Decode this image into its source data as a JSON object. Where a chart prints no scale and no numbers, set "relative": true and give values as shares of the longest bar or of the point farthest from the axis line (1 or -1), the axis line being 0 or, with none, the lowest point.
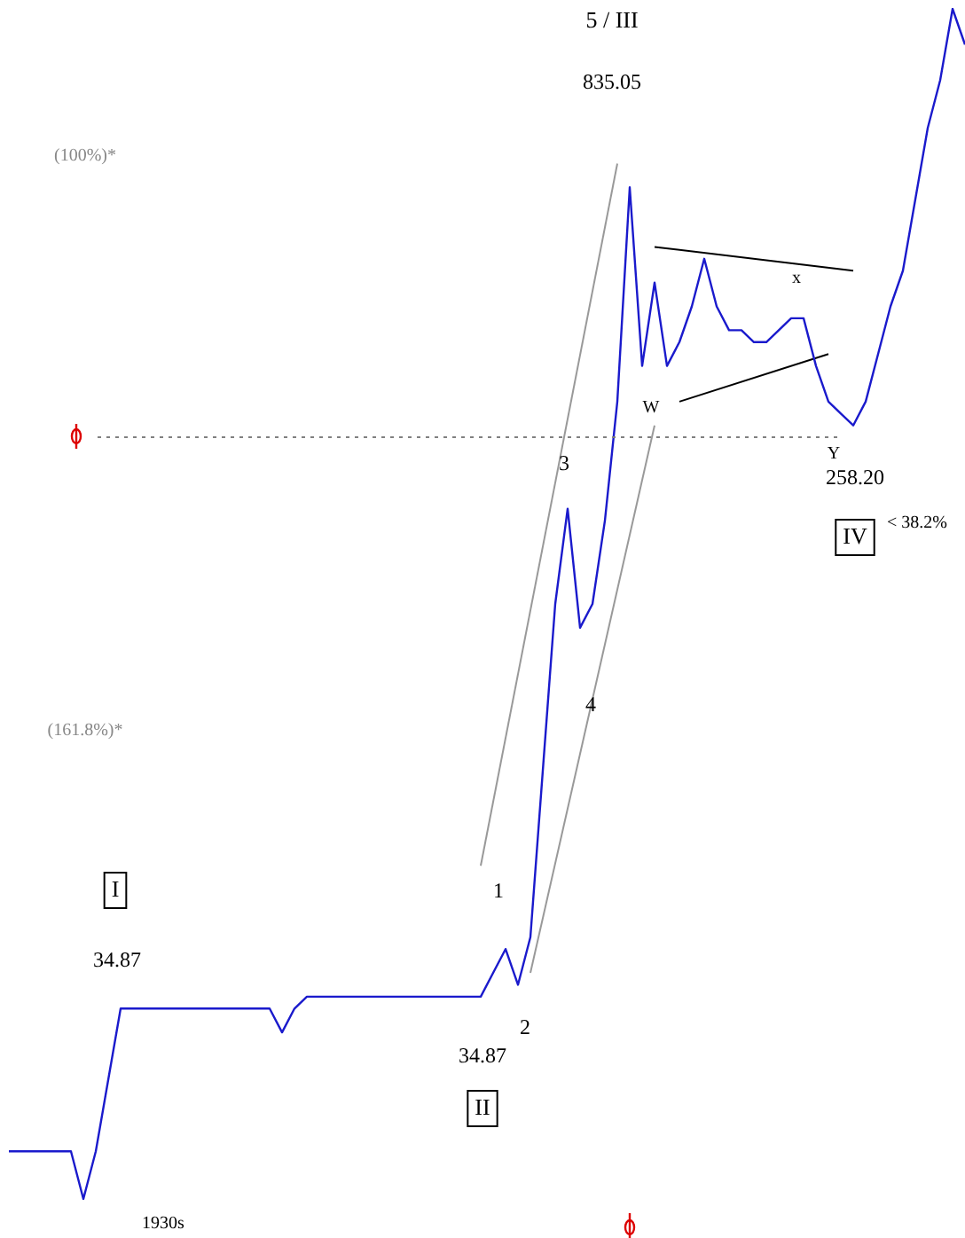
{
  "chart_data": {
    "type": "line",
    "relative": true,
    "legend": false,
    "marker": "none",
    "categories": [
      null,
      null,
      null,
      null,
      null,
      null,
      null,
      null,
      null,
      null,
      null,
      null,
      null,
      null,
      null,
      null,
      null,
      null,
      null,
      null,
      null,
      null,
      null,
      null,
      null,
      null,
      null,
      null,
      null,
      null,
      null,
      null,
      null,
      null,
      null,
      null,
      null,
      null,
      null,
      null,
      null,
      null,
      null,
      null,
      null,
      null,
      null,
      null,
      null,
      null,
      null,
      null,
      null,
      null,
      null,
      null,
      null,
      null,
      null,
      null,
      null,
      null,
      null,
      null,
      null,
      null,
      null,
      null,
      null,
      null,
      null,
      null,
      null,
      null,
      null,
      null,
      null,
      null
    ],
    "series": [
      {
        "color": "#1a1acc",
        "values": [
          0.04,
          0.04,
          0.04,
          0.04,
          0.04,
          0.04,
          0,
          0.04,
          0.1,
          0.16,
          0.16,
          0.16,
          0.16,
          0.16,
          0.16,
          0.16,
          0.16,
          0.16,
          0.16,
          0.16,
          0.16,
          0.16,
          0.14,
          0.16,
          0.17,
          0.17,
          0.17,
          0.17,
          0.17,
          0.17,
          0.17,
          0.17,
          0.17,
          0.17,
          0.17,
          0.17,
          0.17,
          0.17,
          0.17,
          0.19,
          0.21,
          0.18,
          0.22,
          0.36,
          0.5,
          0.58,
          0.48,
          0.5,
          0.57,
          0.67,
          0.85,
          0.7,
          0.77,
          0.7,
          0.72,
          0.75,
          0.79,
          0.75,
          0.73,
          0.73,
          0.72,
          0.72,
          0.73,
          0.74,
          0.74,
          0.7,
          0.67,
          0.66,
          0.65,
          0.67,
          0.71,
          0.75,
          0.78,
          0.84,
          0.9,
          0.94,
          1,
          0.97
        ]
      },
      {
        "type": "line",
        "color": "#000000",
        "values": [
          null,
          null,
          null,
          null,
          null,
          null,
          null,
          null,
          null,
          null,
          null,
          null,
          null,
          null,
          null,
          null,
          null,
          null,
          null,
          null,
          null,
          null,
          null,
          null,
          null,
          null,
          null,
          null,
          null,
          null,
          null,
          null,
          null,
          null,
          null,
          null,
          null,
          null,
          null,
          null,
          null,
          null,
          null,
          null,
          null,
          null,
          null,
          null,
          null,
          null,
          null,
          null,
          0.8,
          null,
          null,
          null,
          null,
          null,
          null,
          null,
          null,
          null,
          null,
          null,
          null,
          null,
          null,
          null,
          0.78,
          null,
          null,
          null,
          null,
          null,
          null,
          null,
          null,
          null
        ]
      },
      {
        "type": "line",
        "color": "#000000",
        "values": [
          null,
          null,
          null,
          null,
          null,
          null,
          null,
          null,
          null,
          null,
          null,
          null,
          null,
          null,
          null,
          null,
          null,
          null,
          null,
          null,
          null,
          null,
          null,
          null,
          null,
          null,
          null,
          null,
          null,
          null,
          null,
          null,
          null,
          null,
          null,
          null,
          null,
          null,
          null,
          null,
          null,
          null,
          null,
          null,
          null,
          null,
          null,
          null,
          null,
          null,
          null,
          null,
          null,
          null,
          0.67,
          null,
          null,
          null,
          null,
          null,
          null,
          null,
          null,
          null,
          null,
          null,
          0.71,
          null,
          null,
          null,
          null,
          null,
          null,
          null,
          null,
          null,
          null,
          null
        ]
      },
      {
        "type": "line",
        "color": "#999999",
        "values": [
          null,
          null,
          null,
          null,
          null,
          null,
          null,
          null,
          null,
          null,
          null,
          null,
          null,
          null,
          null,
          null,
          null,
          null,
          null,
          null,
          null,
          null,
          null,
          null,
          null,
          null,
          null,
          null,
          null,
          null,
          null,
          null,
          null,
          null,
          null,
          null,
          null,
          null,
          0.28,
          null,
          null,
          null,
          null,
          null,
          null,
          null,
          null,
          null,
          null,
          0.87,
          null,
          null,
          null,
          null,
          null,
          null,
          null,
          null,
          null,
          null,
          null,
          null,
          null,
          null,
          null,
          null,
          null,
          null,
          null,
          null,
          null,
          null,
          null,
          null,
          null,
          null,
          null,
          null
        ]
      },
      {
        "type": "line",
        "color": "#999999",
        "values": [
          null,
          null,
          null,
          null,
          null,
          null,
          null,
          null,
          null,
          null,
          null,
          null,
          null,
          null,
          null,
          null,
          null,
          null,
          null,
          null,
          null,
          null,
          null,
          null,
          null,
          null,
          null,
          null,
          null,
          null,
          null,
          null,
          null,
          null,
          null,
          null,
          null,
          null,
          null,
          null,
          null,
          null,
          0.19,
          null,
          null,
          null,
          null,
          null,
          null,
          null,
          null,
          null,
          0.65,
          null,
          null,
          null,
          null,
          null,
          null,
          null,
          null,
          null,
          null,
          null,
          null,
          null,
          null,
          null,
          null,
          null,
          null,
          null,
          null,
          null,
          null,
          null,
          null,
          null
        ]
      }
    ],
    "ref_lines": [
      {
        "axis": "y",
        "value": 0.64,
        "color": "#808080",
        "line_style": "dotted"
      }
    ],
    "annotations": [
      "5 / III",
      "835.05",
      "(100%)*",
      "(161.8%)*",
      "3",
      "4",
      "1",
      "2",
      "I",
      "34.87",
      "34.87",
      "II",
      "W",
      "x",
      "Y",
      "258.20",
      "IV",
      "< 38.2%",
      "1930s"
    ]
  }
}
